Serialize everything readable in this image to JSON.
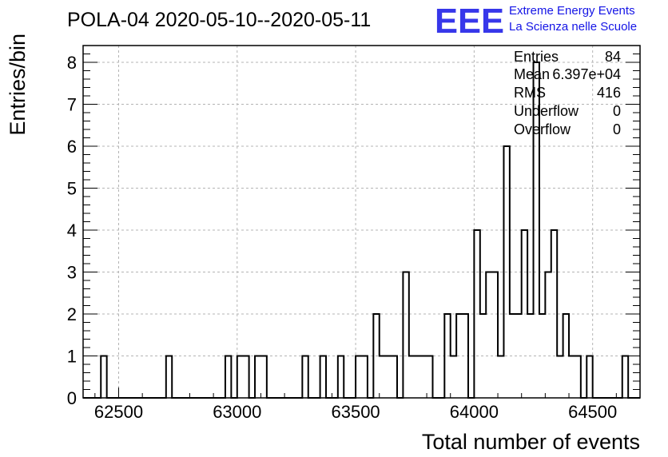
{
  "chart_data": {
    "type": "bar",
    "title": "POLA-04 2020-05-10--2020-05-11",
    "xlabel": "Total number of events",
    "ylabel": "Entries/bin",
    "xlim": [
      62350,
      64700
    ],
    "ylim": [
      0,
      8.4
    ],
    "bin_width": 25,
    "grid": true,
    "x_ticks": [
      "62500",
      "63000",
      "63500",
      "64000",
      "64500"
    ],
    "y_ticks": [
      "0",
      "1",
      "2",
      "3",
      "4",
      "5",
      "6",
      "7",
      "8"
    ],
    "bins": [
      [
        62425,
        1
      ],
      [
        62700,
        1
      ],
      [
        62950,
        1
      ],
      [
        63000,
        1
      ],
      [
        63025,
        1
      ],
      [
        63075,
        1
      ],
      [
        63100,
        1
      ],
      [
        63275,
        1
      ],
      [
        63350,
        1
      ],
      [
        63425,
        1
      ],
      [
        63500,
        1
      ],
      [
        63525,
        1
      ],
      [
        63575,
        2
      ],
      [
        63600,
        1
      ],
      [
        63625,
        1
      ],
      [
        63650,
        1
      ],
      [
        63700,
        3
      ],
      [
        63725,
        1
      ],
      [
        63750,
        1
      ],
      [
        63775,
        1
      ],
      [
        63800,
        1
      ],
      [
        63875,
        2
      ],
      [
        63900,
        1
      ],
      [
        63925,
        2
      ],
      [
        63950,
        2
      ],
      [
        64000,
        4
      ],
      [
        64025,
        2
      ],
      [
        64050,
        3
      ],
      [
        64075,
        3
      ],
      [
        64100,
        1
      ],
      [
        64125,
        6
      ],
      [
        64150,
        2
      ],
      [
        64175,
        2
      ],
      [
        64200,
        4
      ],
      [
        64225,
        2
      ],
      [
        64250,
        8
      ],
      [
        64275,
        2
      ],
      [
        64300,
        3
      ],
      [
        64325,
        4
      ],
      [
        64350,
        1
      ],
      [
        64375,
        2
      ],
      [
        64400,
        1
      ],
      [
        64425,
        1
      ],
      [
        64475,
        1
      ],
      [
        64625,
        1
      ]
    ],
    "stats": {
      "entries_label": "Entries",
      "entries_value": "84",
      "mean_label": "Mean",
      "mean_value": "6.397e+04",
      "rms_label": "RMS",
      "rms_value": "416",
      "underflow_label": "Underflow",
      "underflow_value": "0",
      "overflow_label": "Overflow",
      "overflow_value": "0"
    }
  },
  "logo": {
    "text": "EEE",
    "line1": "Extreme Energy Events",
    "line2": "La Scienza nelle Scuole",
    "color": "#1414e6"
  }
}
